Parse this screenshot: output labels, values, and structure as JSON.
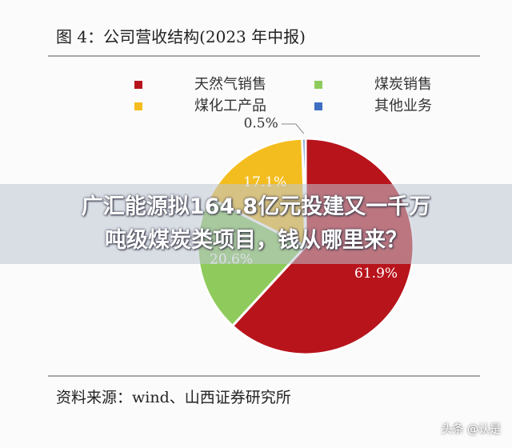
{
  "chart_data": {
    "type": "pie",
    "title": "图 4：公司营收结构(2023 年中报)",
    "categories": [
      "天然气销售",
      "煤炭销售",
      "煤化工产品",
      "其他业务"
    ],
    "values": [
      61.9,
      20.6,
      17.1,
      0.5
    ],
    "value_labels": [
      "61.9%",
      "20.6%",
      "17.1%",
      "0.5%"
    ],
    "colors": [
      "#b8141c",
      "#8fcb5c",
      "#f4bd1f",
      "#3e6fc2"
    ],
    "source": "资料来源：wind、山西证券研究所"
  },
  "banner": {
    "lines": [
      "广汇能源拟164.8亿元投建又一千万",
      "吨级煤炭类项目，钱从哪里来？"
    ]
  },
  "watermark": "头条 @认是"
}
